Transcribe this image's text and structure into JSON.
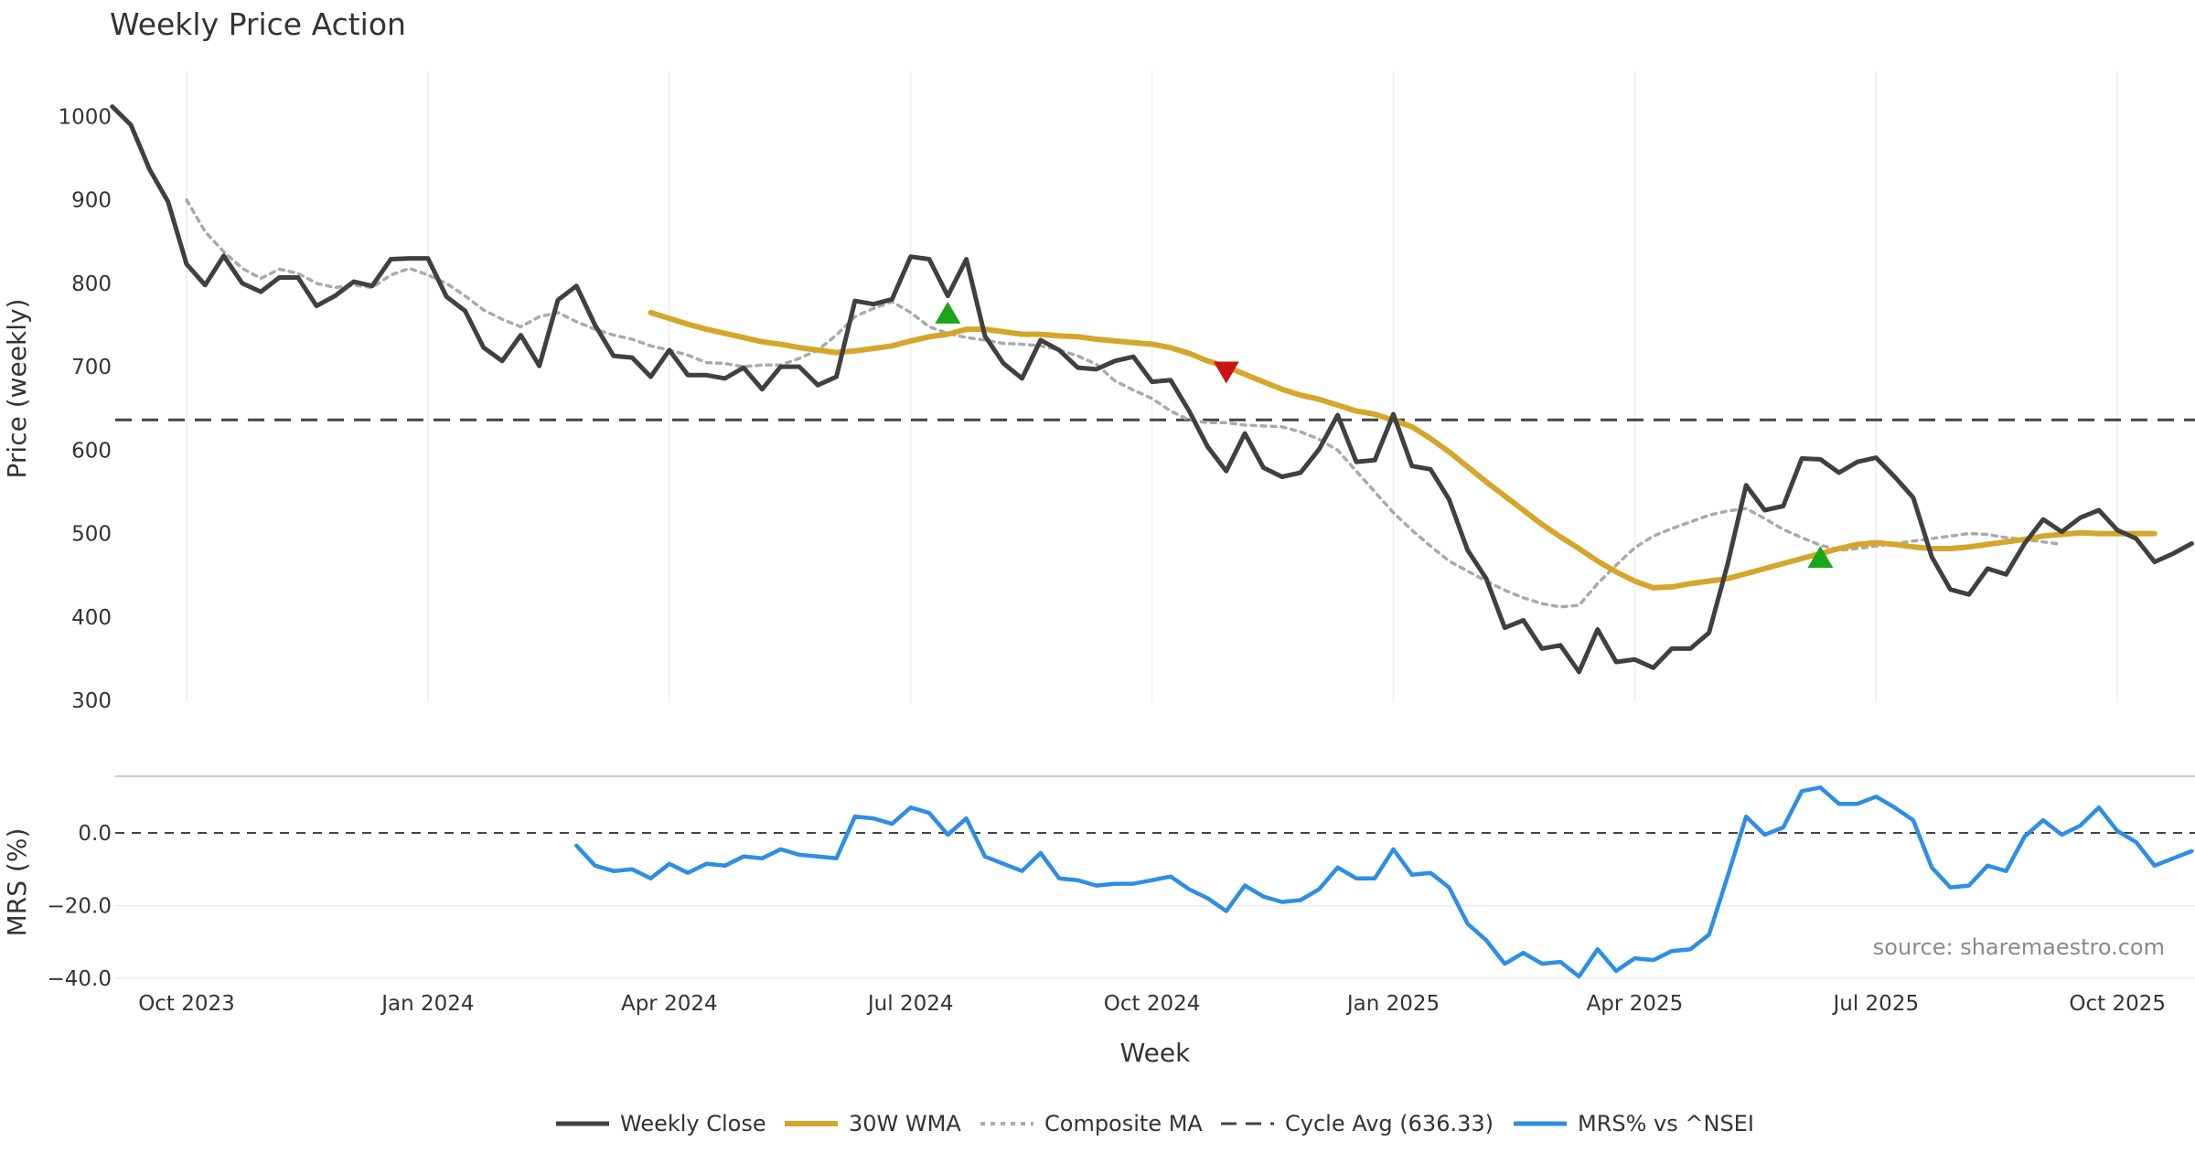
{
  "chart_data": {
    "type": "line",
    "title": "Weekly Price Action",
    "xlabel": "Week",
    "ylabel": "Price (weekly)",
    "ylabel_mrs": "MRS (%)",
    "source": "source: sharemaestro.com",
    "x_ticks": [
      "Oct 2023",
      "Jan 2024",
      "Apr 2024",
      "Jul 2024",
      "Oct 2024",
      "Jan 2025",
      "Apr 2025",
      "Jul 2025",
      "Oct 2025"
    ],
    "x_tick_weeks": [
      0,
      13,
      26,
      39,
      52,
      65,
      78,
      91,
      104
    ],
    "price_ylim": [
      300,
      1040
    ],
    "price_ticks": [
      "1000",
      "900",
      "800",
      "700",
      "600",
      "500",
      "400",
      "300"
    ],
    "price_tick_values": [
      1000,
      900,
      800,
      700,
      600,
      500,
      400,
      300
    ],
    "mrs_ylim": [
      -40,
      16
    ],
    "mrs_ticks": [
      "0.0",
      "−20.0",
      "−40.0"
    ],
    "mrs_tick_values": [
      0,
      -20,
      -40
    ],
    "cycle_avg": 636.33,
    "legend": [
      "Weekly Close",
      "30W WMA",
      "Composite MA",
      "Cycle Avg (636.33)",
      "MRS% vs ^NSEI"
    ],
    "series": [
      {
        "name": "Weekly Close",
        "color": "#404040",
        "start": -4,
        "values": [
          1012,
          990,
          937,
          898,
          823,
          798,
          833,
          800,
          790,
          807,
          807,
          773,
          785,
          802,
          797,
          829,
          830,
          830,
          784,
          767,
          723,
          707,
          738,
          701,
          780,
          797,
          750,
          713,
          711,
          688,
          720,
          690,
          690,
          686,
          699,
          673,
          700,
          700,
          678,
          688,
          779,
          775,
          781,
          832,
          829,
          785,
          829,
          737,
          704,
          686,
          732,
          720,
          699,
          697,
          707,
          712,
          682,
          684,
          647,
          604,
          575,
          620,
          579,
          568,
          573,
          601,
          642,
          586,
          588,
          643,
          581,
          577,
          541,
          480,
          446,
          387,
          396,
          362,
          366,
          334,
          385,
          346,
          349,
          339,
          362,
          362,
          381,
          463,
          558,
          528,
          533,
          590,
          589,
          573,
          586,
          591,
          568,
          543,
          472,
          433,
          427,
          458,
          451,
          488,
          517,
          502,
          519,
          528,
          504,
          494,
          466,
          476,
          488
        ]
      },
      {
        "name": "30W WMA",
        "color": "#d4a62a",
        "start": 25,
        "values": [
          765,
          758,
          751,
          745,
          740,
          735,
          730,
          727,
          723,
          720,
          717,
          719,
          722,
          725,
          731,
          736,
          739,
          745,
          745,
          742,
          739,
          739,
          737,
          736,
          733,
          731,
          729,
          727,
          723,
          716,
          707,
          700,
          691,
          682,
          673,
          666,
          661,
          654,
          647,
          643,
          636,
          628,
          614,
          598,
          580,
          562,
          545,
          528,
          511,
          496,
          482,
          467,
          454,
          443,
          435,
          436,
          440,
          443,
          446,
          452,
          458,
          464,
          470,
          476,
          482,
          487,
          489,
          487,
          484,
          482,
          482,
          484,
          487,
          490,
          493,
          497,
          499,
          501,
          500,
          500,
          500,
          500
        ]
      },
      {
        "name": "Composite MA",
        "color": "#aaaaaa",
        "start": 0,
        "values": [
          900,
          862,
          838,
          818,
          806,
          817,
          812,
          800,
          795,
          798,
          795,
          810,
          818,
          810,
          800,
          785,
          768,
          757,
          748,
          760,
          765,
          754,
          745,
          738,
          733,
          725,
          720,
          714,
          705,
          704,
          700,
          702,
          702,
          710,
          720,
          738,
          760,
          770,
          778,
          765,
          748,
          740,
          735,
          732,
          728,
          727,
          725,
          720,
          713,
          703,
          683,
          672,
          662,
          647,
          636,
          633,
          633,
          630,
          629,
          628,
          622,
          613,
          600,
          575,
          550,
          525,
          504,
          485,
          467,
          455,
          443,
          432,
          423,
          416,
          412,
          414,
          440,
          462,
          483,
          497,
          506,
          514,
          522,
          527,
          530,
          518,
          505,
          495,
          486,
          480,
          482,
          485,
          488,
          491,
          494,
          497,
          500,
          499,
          495,
          493,
          490,
          487
        ]
      },
      {
        "name": "MRS% vs ^NSEI",
        "color": "#2e8ee4",
        "start": 21,
        "values": [
          -3.5,
          -9.0,
          -10.5,
          -10.0,
          -12.5,
          -8.5,
          -11.0,
          -8.5,
          -9.0,
          -6.5,
          -7.0,
          -4.5,
          -6.0,
          -6.5,
          -7.0,
          4.5,
          4.0,
          2.5,
          7.0,
          5.5,
          -0.5,
          4.0,
          -6.5,
          -8.5,
          -10.5,
          -5.5,
          -12.5,
          -13.0,
          -14.5,
          -14.0,
          -14.0,
          -13.0,
          -12.0,
          -15.5,
          -18.0,
          -21.5,
          -14.5,
          -17.5,
          -19.0,
          -18.5,
          -15.5,
          -9.5,
          -12.5,
          -12.5,
          -4.5,
          -11.5,
          -11.0,
          -15.0,
          -25.0,
          -29.5,
          -36.0,
          -33.0,
          -36.0,
          -35.5,
          -39.5,
          -32.0,
          -38.0,
          -34.5,
          -35.0,
          -32.5,
          -32.0,
          -28.0,
          -12.0,
          4.5,
          -0.5,
          1.5,
          11.5,
          12.5,
          8.0,
          8.0,
          10.0,
          7.0,
          3.5,
          -9.5,
          -15.0,
          -14.5,
          -9.0,
          -10.5,
          -1.0,
          3.5,
          -0.5,
          2.0,
          7.0,
          0.5,
          -2.5,
          -9.0,
          -7.0,
          -5.0
        ]
      }
    ],
    "buy_signals": [
      {
        "week": 41,
        "value": 765
      },
      {
        "week": 88,
        "value": 472
      }
    ],
    "sell_signals": [
      {
        "week": 56,
        "value": 693
      }
    ]
  }
}
